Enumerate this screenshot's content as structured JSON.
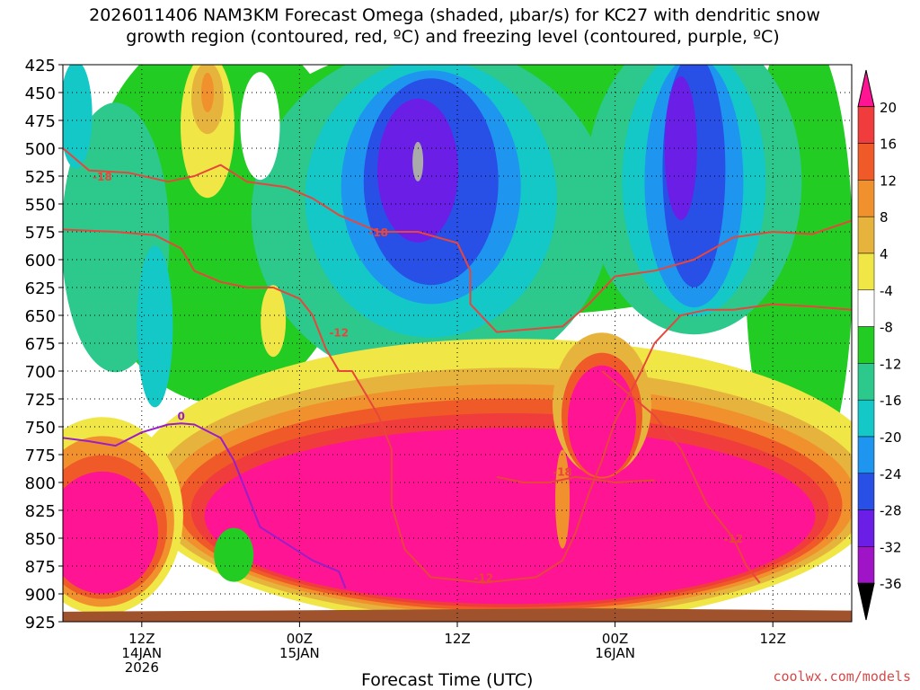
{
  "header": {
    "title_line1": "2026011406 NAM3KM Forecast Omega (shaded, μbar/s) for KC27 with dendritic snow",
    "title_line2": "growth region (contoured, red, ºC) and freezing level (contoured, purple, ºC)"
  },
  "footer": {
    "credit": "coolwx.com/models"
  },
  "chart_data": {
    "type": "heatmap",
    "xlabel": "Forecast Time (UTC)",
    "x_ticks": [
      {
        "hour": 6,
        "lines": [
          "12Z",
          "14JAN",
          "2026"
        ]
      },
      {
        "hour": 18,
        "lines": [
          "00Z",
          "15JAN"
        ]
      },
      {
        "hour": 30,
        "lines": [
          "12Z"
        ]
      },
      {
        "hour": 42,
        "lines": [
          "00Z",
          "16JAN"
        ]
      },
      {
        "hour": 54,
        "lines": [
          "12Z"
        ]
      }
    ],
    "xlim": [
      0,
      60
    ],
    "ylabel": "",
    "y_levels": [
      425,
      450,
      475,
      500,
      525,
      550,
      575,
      600,
      625,
      650,
      675,
      700,
      725,
      750,
      775,
      800,
      825,
      850,
      875,
      900,
      925
    ],
    "colorbar": {
      "labels": [
        20,
        16,
        12,
        8,
        4,
        -4,
        -8,
        -12,
        -16,
        -20,
        -24,
        -28,
        -32,
        -36
      ],
      "bins": [
        {
          "lo": 20,
          "hi": 24,
          "color": "#ff1493"
        },
        {
          "lo": 16,
          "hi": 20,
          "color": "#f03c3c"
        },
        {
          "lo": 12,
          "hi": 16,
          "color": "#f05a28"
        },
        {
          "lo": 8,
          "hi": 12,
          "color": "#f0912d"
        },
        {
          "lo": 4,
          "hi": 8,
          "color": "#e6b43c"
        },
        {
          "lo": -4,
          "hi": 4,
          "color": "#f0e646"
        },
        {
          "lo": -8,
          "hi": -4,
          "color": "#ffffff"
        },
        {
          "lo": -12,
          "hi": -8,
          "color": "#22cc22"
        },
        {
          "lo": -16,
          "hi": -12,
          "color": "#2cc88c"
        },
        {
          "lo": -20,
          "hi": -16,
          "color": "#14c8c8"
        },
        {
          "lo": -24,
          "hi": -20,
          "color": "#1e96f0"
        },
        {
          "lo": -28,
          "hi": -24,
          "color": "#2850e6"
        },
        {
          "lo": -32,
          "hi": -28,
          "color": "#6a1ee6"
        },
        {
          "lo": -36,
          "hi": -32,
          "color": "#a014c8"
        },
        {
          "lo": -40,
          "hi": -36,
          "color": "#aaaaaa"
        }
      ]
    },
    "omega_regions": [
      {
        "value": 24,
        "hour": 34,
        "p_top": 700,
        "p_bottom": 905
      },
      {
        "value": 24,
        "hour": 3,
        "p_top": 800,
        "p_bottom": 900
      },
      {
        "value": -26,
        "hour": 28,
        "p_top": 440,
        "p_bottom": 650
      },
      {
        "value": -30,
        "hour": 28,
        "p_top": 460,
        "p_bottom": 600
      },
      {
        "value": -26,
        "hour": 48,
        "p_top": 430,
        "p_bottom": 670
      },
      {
        "value": -38,
        "hour": 27,
        "p_top": 495,
        "p_bottom": 530
      }
    ],
    "contour_labels": [
      {
        "text": "-18",
        "hour": 3,
        "p": 525,
        "series": "dgz"
      },
      {
        "text": "-18",
        "hour": 24,
        "p": 575,
        "series": "dgz"
      },
      {
        "text": "-12",
        "hour": 21,
        "p": 665,
        "series": "dgz"
      },
      {
        "text": "-18",
        "hour": 38,
        "p": 790,
        "series": "dgz"
      },
      {
        "text": "-12",
        "hour": 32,
        "p": 885,
        "series": "dgz"
      },
      {
        "text": "-12",
        "hour": 51,
        "p": 850,
        "series": "dgz"
      },
      {
        "text": "0",
        "hour": 9,
        "p": 740,
        "series": "freezing"
      }
    ],
    "contour_colors": {
      "dgz": "#e8463c",
      "freezing": "#9a1ec8"
    },
    "ground_color": "#a0522d",
    "grid": true
  }
}
